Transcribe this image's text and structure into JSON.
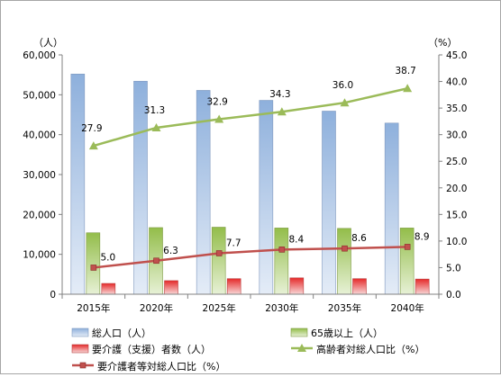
{
  "chart_data": {
    "type": "bar",
    "categories": [
      "2015年",
      "2020年",
      "2025年",
      "2030年",
      "2035年",
      "2040年"
    ],
    "y_left": {
      "unit_label": "（人）",
      "range": [
        0,
        60000
      ],
      "ticks": [
        "0",
        "10,000",
        "20,000",
        "30,000",
        "40,000",
        "50,000",
        "60,000"
      ]
    },
    "y_right": {
      "unit_label": "（%）",
      "range": [
        0,
        45
      ],
      "ticks": [
        "0.0",
        "5.0",
        "10.0",
        "15.0",
        "20.0",
        "25.0",
        "30.0",
        "35.0",
        "40.0",
        "45.0"
      ]
    },
    "series": [
      {
        "name": "総人口（人）",
        "kind": "bar",
        "axis": "left",
        "color": "#95b3d7",
        "values": [
          55200,
          53400,
          51100,
          48600,
          45900,
          42900
        ]
      },
      {
        "name": "65歳以上（人）",
        "kind": "bar",
        "axis": "left",
        "color": "#9bbb59",
        "values": [
          15400,
          16700,
          16800,
          16600,
          16500,
          16600
        ]
      },
      {
        "name": "要介護（支援）者数（人）",
        "kind": "bar",
        "axis": "left",
        "color": "#e84b4b",
        "values": [
          2700,
          3400,
          3900,
          4100,
          3900,
          3800
        ]
      },
      {
        "name": "高齢者対総人口比（%）",
        "kind": "line",
        "axis": "right",
        "color": "#9bbb59",
        "values": [
          27.9,
          31.3,
          32.9,
          34.3,
          36.0,
          38.7
        ],
        "labels": [
          "27.9",
          "31.3",
          "32.9",
          "34.3",
          "36.0",
          "38.7"
        ]
      },
      {
        "name": "要介護者等対総人口比（%）",
        "kind": "line",
        "axis": "right",
        "color": "#c0504d",
        "values": [
          5.0,
          6.3,
          7.7,
          8.4,
          8.6,
          8.9
        ],
        "labels": [
          "5.0",
          "6.3",
          "7.7",
          "8.4",
          "8.6",
          "8.9"
        ]
      }
    ],
    "grid": false,
    "legend_position": "bottom"
  }
}
